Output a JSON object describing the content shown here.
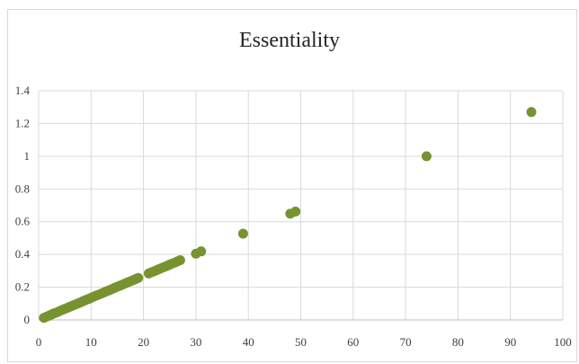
{
  "chart_data": {
    "type": "scatter",
    "title": "Essentiality",
    "xlabel": "",
    "ylabel": "",
    "xlim": [
      0,
      100
    ],
    "ylim": [
      0,
      1.4
    ],
    "x_ticks": [
      0,
      10,
      20,
      30,
      40,
      50,
      60,
      70,
      80,
      90,
      100
    ],
    "y_ticks": [
      0,
      0.2,
      0.4,
      0.6,
      0.8,
      1,
      1.2,
      1.4
    ],
    "y_tick_labels": [
      "0",
      "0.2",
      "0.4",
      "0.6",
      "0.8",
      "1",
      "1.2",
      "1.4"
    ],
    "grid": true,
    "legend": "none",
    "marker_color": "#77932f",
    "points": [
      [
        1,
        0.013
      ],
      [
        1.5,
        0.02
      ],
      [
        2,
        0.027
      ],
      [
        2.5,
        0.034
      ],
      [
        3,
        0.041
      ],
      [
        3.5,
        0.047
      ],
      [
        4,
        0.054
      ],
      [
        4.5,
        0.061
      ],
      [
        5,
        0.068
      ],
      [
        5.5,
        0.074
      ],
      [
        6,
        0.081
      ],
      [
        6.5,
        0.088
      ],
      [
        7,
        0.095
      ],
      [
        7.5,
        0.101
      ],
      [
        8,
        0.108
      ],
      [
        8.5,
        0.115
      ],
      [
        9,
        0.122
      ],
      [
        9.5,
        0.128
      ],
      [
        10,
        0.135
      ],
      [
        10.5,
        0.142
      ],
      [
        11,
        0.149
      ],
      [
        11.5,
        0.155
      ],
      [
        12,
        0.162
      ],
      [
        12.5,
        0.169
      ],
      [
        13,
        0.176
      ],
      [
        13.5,
        0.182
      ],
      [
        14,
        0.189
      ],
      [
        14.5,
        0.196
      ],
      [
        15,
        0.203
      ],
      [
        15.5,
        0.209
      ],
      [
        16,
        0.216
      ],
      [
        16.5,
        0.223
      ],
      [
        17,
        0.23
      ],
      [
        17.5,
        0.236
      ],
      [
        18,
        0.243
      ],
      [
        18.5,
        0.25
      ],
      [
        19,
        0.257
      ],
      [
        21,
        0.284
      ],
      [
        21.5,
        0.291
      ],
      [
        22,
        0.297
      ],
      [
        22.5,
        0.304
      ],
      [
        23,
        0.311
      ],
      [
        23.5,
        0.318
      ],
      [
        24,
        0.324
      ],
      [
        24.5,
        0.331
      ],
      [
        25,
        0.338
      ],
      [
        25.5,
        0.345
      ],
      [
        26,
        0.351
      ],
      [
        26.5,
        0.358
      ],
      [
        27,
        0.365
      ],
      [
        30,
        0.405
      ],
      [
        31,
        0.419
      ],
      [
        39,
        0.527
      ],
      [
        48,
        0.649
      ],
      [
        49,
        0.662
      ],
      [
        74,
        1.0
      ],
      [
        94,
        1.27
      ]
    ]
  }
}
